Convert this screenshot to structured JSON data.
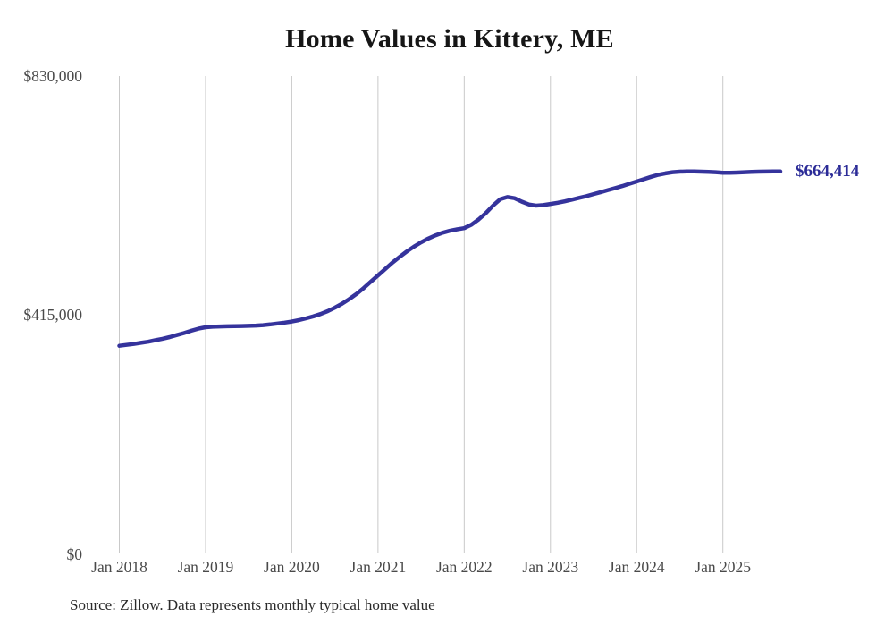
{
  "title": "Home Values in Kittery, ME",
  "source_note": "Source: Zillow. Data represents monthly typical home value",
  "colors": {
    "line": "#35339c",
    "end_label": "#2b2b97",
    "gridline": "#c9c9c9",
    "title": "#161616",
    "axis_label": "#4a4a4a",
    "background": "#ffffff"
  },
  "chart_data": {
    "type": "line",
    "title": "Home Values in Kittery, ME",
    "xlabel": "",
    "ylabel": "",
    "ylim": [
      0,
      830000
    ],
    "grid": "vertical-only",
    "legend": "none",
    "final_value": 664414,
    "final_value_label": "$664,414",
    "y_ticks": [
      {
        "label": "$830,000",
        "value": 830000
      },
      {
        "label": "$415,000",
        "value": 415000
      },
      {
        "label": "$0",
        "value": 0
      }
    ],
    "x_ticks": [
      {
        "label": "Jan 2018",
        "month_index": 0
      },
      {
        "label": "Jan 2019",
        "month_index": 12
      },
      {
        "label": "Jan 2020",
        "month_index": 24
      },
      {
        "label": "Jan 2021",
        "month_index": 36
      },
      {
        "label": "Jan 2022",
        "month_index": 48
      },
      {
        "label": "Jan 2023",
        "month_index": 60
      },
      {
        "label": "Jan 2024",
        "month_index": 72
      },
      {
        "label": "Jan 2025",
        "month_index": 84
      }
    ],
    "series": [
      {
        "name": "Typical home value",
        "months": [
          "2018-01",
          "2018-02",
          "2018-03",
          "2018-04",
          "2018-05",
          "2018-06",
          "2018-07",
          "2018-08",
          "2018-09",
          "2018-10",
          "2018-11",
          "2018-12",
          "2019-01",
          "2019-02",
          "2019-03",
          "2019-04",
          "2019-05",
          "2019-06",
          "2019-07",
          "2019-08",
          "2019-09",
          "2019-10",
          "2019-11",
          "2019-12",
          "2020-01",
          "2020-02",
          "2020-03",
          "2020-04",
          "2020-05",
          "2020-06",
          "2020-07",
          "2020-08",
          "2020-09",
          "2020-10",
          "2020-11",
          "2020-12",
          "2021-01",
          "2021-02",
          "2021-03",
          "2021-04",
          "2021-05",
          "2021-06",
          "2021-07",
          "2021-08",
          "2021-09",
          "2021-10",
          "2021-11",
          "2021-12",
          "2022-01",
          "2022-02",
          "2022-03",
          "2022-04",
          "2022-05",
          "2022-06",
          "2022-07",
          "2022-08",
          "2022-09",
          "2022-10",
          "2022-11",
          "2022-12",
          "2023-01",
          "2023-02",
          "2023-03",
          "2023-04",
          "2023-05",
          "2023-06",
          "2023-07",
          "2023-08",
          "2023-09",
          "2023-10",
          "2023-11",
          "2023-12",
          "2024-01",
          "2024-02",
          "2024-03",
          "2024-04",
          "2024-05",
          "2024-06",
          "2024-07",
          "2024-08",
          "2024-09",
          "2024-10",
          "2024-11",
          "2024-12",
          "2025-01",
          "2025-02",
          "2025-03",
          "2025-04",
          "2025-05",
          "2025-06",
          "2025-07",
          "2025-08",
          "2025-09"
        ],
        "values": [
          362000,
          363500,
          365000,
          367000,
          369000,
          371500,
          374000,
          377000,
          380500,
          384000,
          388000,
          391500,
          394000,
          395000,
          395500,
          395800,
          396000,
          396200,
          396500,
          397000,
          397800,
          399000,
          400500,
          402200,
          404000,
          406500,
          409500,
          413000,
          417000,
          422000,
          428000,
          435000,
          443000,
          452000,
          462000,
          473000,
          484000,
          495000,
          506000,
          516000,
          525500,
          534000,
          541500,
          548000,
          553500,
          558000,
          561500,
          564000,
          566000,
          572000,
          581000,
          592000,
          605000,
          616000,
          620000,
          618000,
          612000,
          607000,
          605000,
          606000,
          608000,
          610000,
          612500,
          615500,
          618500,
          621500,
          625000,
          628500,
          632000,
          635500,
          639000,
          643000,
          647000,
          651000,
          655000,
          658500,
          661000,
          663000,
          664000,
          664500,
          664500,
          664000,
          663500,
          663000,
          662000,
          662000,
          662500,
          663000,
          663500,
          664000,
          664200,
          664300,
          664414
        ]
      }
    ]
  }
}
